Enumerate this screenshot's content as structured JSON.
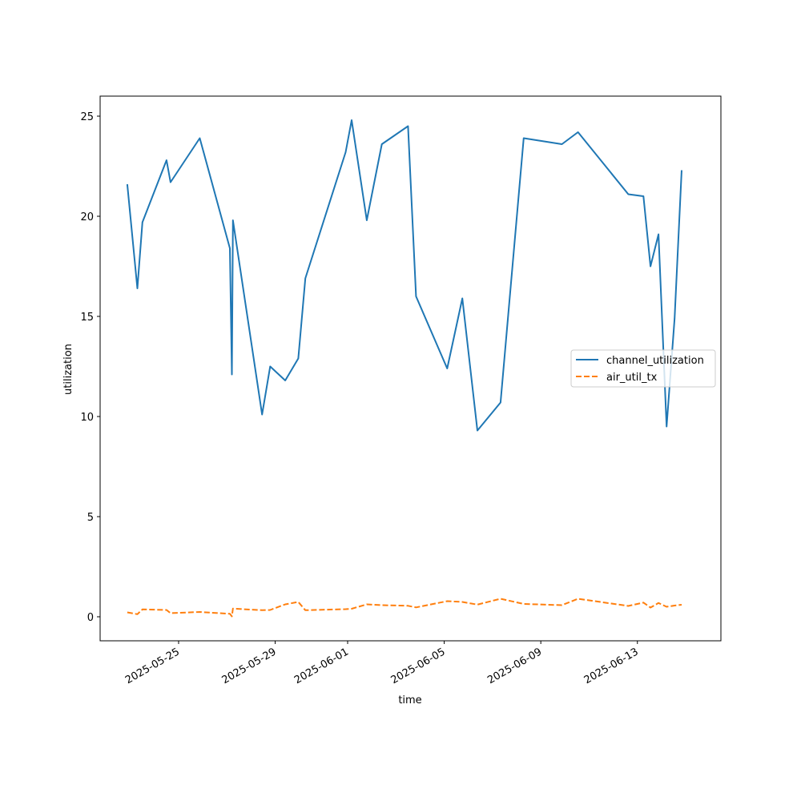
{
  "chart_data": {
    "type": "line",
    "title": "",
    "xlabel": "time",
    "ylabel": "utilization",
    "x_type": "date",
    "xlim": [
      "2025-05-21T18:00",
      "2025-06-16T11:00"
    ],
    "ylim": [
      -1.2,
      26.0
    ],
    "grid": false,
    "legend_position": "center-right",
    "x_ticks": [
      "2025-05-25",
      "2025-05-29",
      "2025-06-01",
      "2025-06-05",
      "2025-06-09",
      "2025-06-13"
    ],
    "y_ticks": [
      0,
      5,
      10,
      15,
      20,
      25
    ],
    "series": [
      {
        "name": "channel_utilization",
        "color": "#1f77b4",
        "dash": "solid",
        "points": [
          [
            "2025-05-22T21:00",
            21.6
          ],
          [
            "2025-05-23T07:00",
            16.4
          ],
          [
            "2025-05-23T12:00",
            19.7
          ],
          [
            "2025-05-24T12:00",
            22.8
          ],
          [
            "2025-05-24T16:00",
            21.7
          ],
          [
            "2025-05-25T21:00",
            23.9
          ],
          [
            "2025-05-27T03:00",
            18.4
          ],
          [
            "2025-05-27T05:00",
            12.1
          ],
          [
            "2025-05-27T06:00",
            19.8
          ],
          [
            "2025-05-28T11:00",
            10.1
          ],
          [
            "2025-05-28T19:00",
            12.5
          ],
          [
            "2025-05-29T10:00",
            11.8
          ],
          [
            "2025-05-29T23:00",
            12.9
          ],
          [
            "2025-05-30T06:00",
            16.9
          ],
          [
            "2025-05-31T22:00",
            23.2
          ],
          [
            "2025-06-01T04:00",
            24.8
          ],
          [
            "2025-06-01T19:00",
            19.8
          ],
          [
            "2025-06-02T10:00",
            23.6
          ],
          [
            "2025-06-03T12:00",
            24.5
          ],
          [
            "2025-06-03T20:00",
            16.0
          ],
          [
            "2025-06-05T03:00",
            12.4
          ],
          [
            "2025-06-05T18:00",
            15.9
          ],
          [
            "2025-06-06T09:00",
            9.3
          ],
          [
            "2025-06-07T08:00",
            10.7
          ],
          [
            "2025-06-08T07:00",
            23.9
          ],
          [
            "2025-06-09T21:00",
            23.6
          ],
          [
            "2025-06-10T13:00",
            24.2
          ],
          [
            "2025-06-12T15:00",
            21.1
          ],
          [
            "2025-06-13T06:00",
            21.0
          ],
          [
            "2025-06-13T13:00",
            17.5
          ],
          [
            "2025-06-13T21:00",
            19.1
          ],
          [
            "2025-06-14T05:00",
            9.5
          ],
          [
            "2025-06-14T13:00",
            14.9
          ],
          [
            "2025-06-14T20:00",
            22.3
          ]
        ]
      },
      {
        "name": "air_util_tx",
        "color": "#ff7f0e",
        "dash": "dashed",
        "points": [
          [
            "2025-05-22T21:00",
            0.22
          ],
          [
            "2025-05-23T07:00",
            0.13
          ],
          [
            "2025-05-23T12:00",
            0.37
          ],
          [
            "2025-05-24T12:00",
            0.34
          ],
          [
            "2025-05-24T16:00",
            0.18
          ],
          [
            "2025-05-25T21:00",
            0.24
          ],
          [
            "2025-05-27T03:00",
            0.15
          ],
          [
            "2025-05-27T05:00",
            0.02
          ],
          [
            "2025-05-27T06:00",
            0.41
          ],
          [
            "2025-05-28T11:00",
            0.33
          ],
          [
            "2025-05-28T19:00",
            0.34
          ],
          [
            "2025-05-29T10:00",
            0.62
          ],
          [
            "2025-05-29T23:00",
            0.74
          ],
          [
            "2025-05-30T06:00",
            0.33
          ],
          [
            "2025-05-31T22:00",
            0.38
          ],
          [
            "2025-06-01T04:00",
            0.4
          ],
          [
            "2025-06-01T19:00",
            0.62
          ],
          [
            "2025-06-02T10:00",
            0.58
          ],
          [
            "2025-06-03T12:00",
            0.55
          ],
          [
            "2025-06-03T20:00",
            0.47
          ],
          [
            "2025-06-05T03:00",
            0.78
          ],
          [
            "2025-06-05T18:00",
            0.74
          ],
          [
            "2025-06-06T09:00",
            0.61
          ],
          [
            "2025-06-07T08:00",
            0.9
          ],
          [
            "2025-06-08T07:00",
            0.64
          ],
          [
            "2025-06-09T21:00",
            0.58
          ],
          [
            "2025-06-10T13:00",
            0.9
          ],
          [
            "2025-06-12T15:00",
            0.54
          ],
          [
            "2025-06-13T06:00",
            0.71
          ],
          [
            "2025-06-13T13:00",
            0.46
          ],
          [
            "2025-06-13T21:00",
            0.69
          ],
          [
            "2025-06-14T05:00",
            0.5
          ],
          [
            "2025-06-14T13:00",
            0.56
          ],
          [
            "2025-06-14T20:00",
            0.6
          ]
        ]
      }
    ]
  }
}
